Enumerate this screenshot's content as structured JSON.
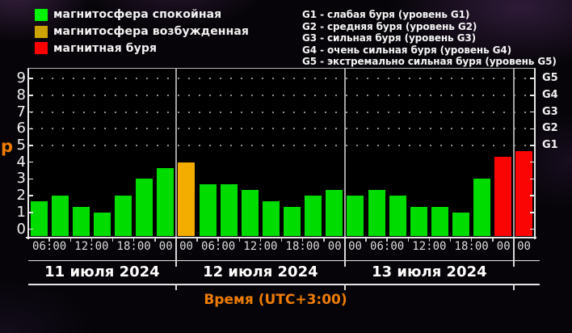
{
  "legend_status": {
    "items": [
      {
        "key": "quiet",
        "label": "магнитосфера спокойная",
        "color": "#00f400"
      },
      {
        "key": "excited",
        "label": "магнитосфера возбужденная",
        "color": "#cda303"
      },
      {
        "key": "storm",
        "label": "магнитная буря",
        "color": "#ff0000"
      }
    ]
  },
  "legend_storm_levels": {
    "items": [
      "G1 - слабая буря (уровень G1)",
      "G2 - средняя буря (уровень G2)",
      "G3 - сильная буря (уровень G3)",
      "G4 - очень сильная буря (уровень G4)",
      "G5 - экстремально сильная буря (уровень G5)"
    ]
  },
  "chart_data": {
    "type": "bar",
    "title": "",
    "ylabel": "p",
    "xlabel": "Время (UTC+3:00)",
    "ylim": [
      0,
      9
    ],
    "y_ticks": [
      0,
      1,
      2,
      3,
      4,
      5,
      6,
      7,
      8,
      9
    ],
    "right_axis_labels": [
      {
        "kp": 5,
        "label": "G1"
      },
      {
        "kp": 6,
        "label": "G2"
      },
      {
        "kp": 7,
        "label": "G3"
      },
      {
        "kp": 8,
        "label": "G4"
      },
      {
        "kp": 9,
        "label": "G5"
      }
    ],
    "grid_dotted_at": [
      5,
      6,
      7,
      8,
      9
    ],
    "x_interval_hours": 3,
    "x_tick_labels": [
      {
        "boundary": 1,
        "label": "06:00"
      },
      {
        "boundary": 3,
        "label": "12:00"
      },
      {
        "boundary": 5,
        "label": "18:00"
      },
      {
        "boundary": 7,
        "label": "00:00"
      },
      {
        "boundary": 9,
        "label": "06:00"
      },
      {
        "boundary": 11,
        "label": "12:00"
      },
      {
        "boundary": 13,
        "label": "18:00"
      },
      {
        "boundary": 15,
        "label": "00:00"
      },
      {
        "boundary": 17,
        "label": "06:00"
      },
      {
        "boundary": 19,
        "label": "12:00"
      },
      {
        "boundary": 21,
        "label": "18:00"
      },
      {
        "boundary": 23,
        "label": "00:00"
      }
    ],
    "day_boundaries": [
      7,
      15,
      23
    ],
    "days": [
      {
        "date": "11 июля 2024",
        "start_slot": 0,
        "values": [
          1.67,
          2,
          1.33,
          1,
          2,
          3,
          3.67
        ],
        "status": [
          "quiet",
          "quiet",
          "quiet",
          "quiet",
          "quiet",
          "quiet",
          "quiet"
        ]
      },
      {
        "date": "12 июля 2024",
        "start_slot": 7,
        "values": [
          4,
          2.67,
          2.67,
          2.33,
          1.67,
          1.33,
          2,
          2.33
        ],
        "status": [
          "excited",
          "quiet",
          "quiet",
          "quiet",
          "quiet",
          "quiet",
          "quiet",
          "quiet"
        ]
      },
      {
        "date": "13 июля 2024",
        "start_slot": 15,
        "values": [
          2,
          2.33,
          2,
          1.33,
          1.33,
          1,
          3,
          4.33
        ],
        "status": [
          "quiet",
          "quiet",
          "quiet",
          "quiet",
          "quiet",
          "quiet",
          "quiet",
          "storm"
        ]
      },
      {
        "date": "",
        "start_slot": 23,
        "values": [
          4.67
        ],
        "status": [
          "storm"
        ]
      }
    ],
    "status_colors": {
      "quiet": "#00dc00",
      "excited": "#f2ad00",
      "storm": "#fb0404"
    }
  }
}
